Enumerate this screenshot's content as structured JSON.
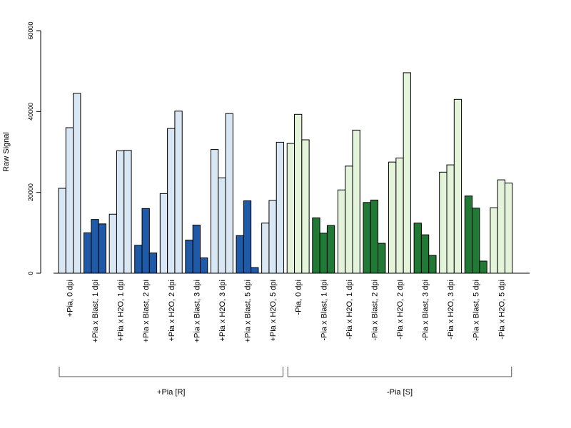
{
  "chart_data": {
    "type": "bar",
    "ylabel": "Raw Signal",
    "xlabel": "",
    "title": "",
    "ylim": [
      0,
      60000
    ],
    "yticks": [
      0,
      20000,
      40000,
      60000
    ],
    "grid": false,
    "legend": "none",
    "categories": [
      "+Pia, 0 dpi",
      "+Pia x Blast, 1 dpi",
      "+Pia x H2O, 1 dpi",
      "+Pia x Blast, 2 dpi",
      "+Pia x H2O, 2 dpi",
      "+Pia x Blast, 3 dpi",
      "+Pia x H2O, 3 dpi",
      "+Pia x Blast, 5 dpi",
      "+Pia x H2O, 5 dpi",
      "-Pia, 0 dpi",
      "-Pia x Blast, 1 dpi",
      "-Pia x H2O, 1 dpi",
      "-Pia x Blast, 2 dpi",
      "-Pia x H2O, 2 dpi",
      "-Pia x Blast, 3 dpi",
      "-Pia x H2O, 3 dpi",
      "-Pia x Blast, 5 dpi",
      "-Pia x H2O, 5 dpi"
    ],
    "replicates": [
      [
        21000,
        36000,
        44500
      ],
      [
        10000,
        13300,
        12200
      ],
      [
        14600,
        30300,
        30400
      ],
      [
        6900,
        16000,
        5000
      ],
      [
        19700,
        35800,
        40100
      ],
      [
        8200,
        11900,
        3800
      ],
      [
        30600,
        23600,
        39500
      ],
      [
        9300,
        17900,
        1400
      ],
      [
        12400,
        18000,
        32400
      ],
      [
        32100,
        39300,
        33000
      ],
      [
        13700,
        9900,
        11800
      ],
      [
        20600,
        26500,
        35400
      ],
      [
        17500,
        18100,
        7400
      ],
      [
        27500,
        28500,
        49600
      ],
      [
        12400,
        9500,
        4400
      ],
      [
        25000,
        26800,
        43000
      ],
      [
        19100,
        16100,
        3000
      ],
      [
        16200,
        23100,
        22300
      ]
    ],
    "bar_colors": {
      "+Pia": {
        "light": "#d9e6f4",
        "dark": "#1f5aa8"
      },
      "-Pia": {
        "light": "#e3f4da",
        "dark": "#207a35"
      }
    },
    "groups": [
      {
        "label": "+Pia [R]",
        "from": 0,
        "to": 8
      },
      {
        "label": "-Pia [S]",
        "from": 9,
        "to": 17
      }
    ]
  }
}
